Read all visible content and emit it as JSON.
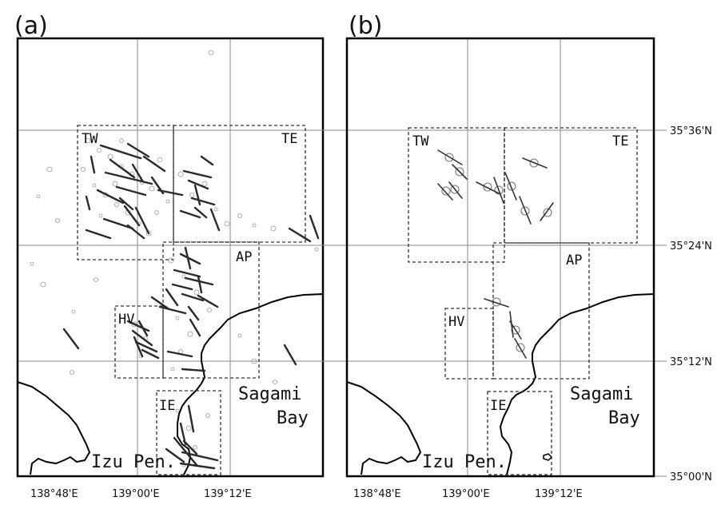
{
  "panels": [
    {
      "letter": "(a)",
      "regions": [
        "TW",
        "TE",
        "AP",
        "HV",
        "IE"
      ]
    },
    {
      "letter": "(b)",
      "regions": [
        "TW",
        "TE",
        "AP",
        "HV",
        "IE"
      ]
    }
  ],
  "place_labels": {
    "bay_line1": "Sagami",
    "bay_line2": "Bay",
    "peninsula": "Izu Pen."
  },
  "x_ticks": [
    "138°48'E",
    "139°00'E",
    "139°12'E"
  ],
  "y_ticks": [
    "35°36'N",
    "35°24'N",
    "35°12'N",
    "35°00'N"
  ]
}
